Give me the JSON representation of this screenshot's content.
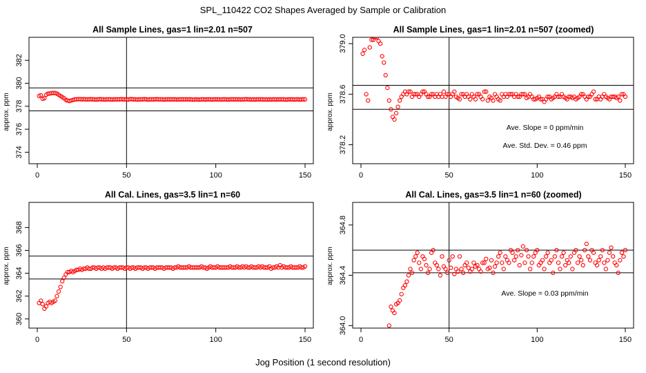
{
  "figure": {
    "title": "SPL_110422  CO2 Shapes Averaged by Sample or Calibration",
    "xlabel": "Jog Position (1 second resolution)"
  },
  "colors": {
    "points": "#ff0000",
    "axes": "#000000",
    "background": "#ffffff"
  },
  "chart_data": [
    {
      "type": "scatter",
      "title": "All Sample Lines, gas=1 lin=2.01 n=507",
      "ylabel": "approx. ppm",
      "xlim": [
        0,
        150
      ],
      "ylim": [
        373,
        384
      ],
      "xticks": [
        0,
        50,
        100,
        150
      ],
      "yticks": [
        374,
        376,
        378,
        380,
        382
      ],
      "ytick_labels": [
        "374",
        "376",
        "378",
        "380",
        "382"
      ],
      "hlines": [
        377.6,
        379.6
      ],
      "vline": 50,
      "annotations": [],
      "x": [
        1,
        2,
        3,
        4,
        5,
        6,
        7,
        8,
        9,
        10,
        11,
        12,
        13,
        14,
        15,
        16,
        17,
        18,
        19,
        20,
        21,
        22,
        23,
        24,
        25,
        26,
        27,
        28,
        29,
        30,
        31,
        32,
        33,
        34,
        35,
        36,
        37,
        38,
        39,
        40,
        41,
        42,
        43,
        44,
        45,
        46,
        47,
        48,
        49,
        50,
        51,
        52,
        53,
        54,
        55,
        56,
        57,
        58,
        59,
        60,
        61,
        62,
        63,
        64,
        65,
        66,
        67,
        68,
        69,
        70,
        71,
        72,
        73,
        74,
        75,
        76,
        77,
        78,
        79,
        80,
        81,
        82,
        83,
        84,
        85,
        86,
        87,
        88,
        89,
        90,
        91,
        92,
        93,
        94,
        95,
        96,
        97,
        98,
        99,
        100,
        101,
        102,
        103,
        104,
        105,
        106,
        107,
        108,
        109,
        110,
        111,
        112,
        113,
        114,
        115,
        116,
        117,
        118,
        119,
        120,
        121,
        122,
        123,
        124,
        125,
        126,
        127,
        128,
        129,
        130,
        131,
        132,
        133,
        134,
        135,
        136,
        137,
        138,
        139,
        140,
        141,
        142,
        143,
        144,
        145,
        146,
        147,
        148,
        149,
        150
      ],
      "y": [
        378.9,
        378.95,
        378.65,
        378.7,
        379.0,
        379.1,
        379.1,
        379.15,
        379.15,
        379.15,
        379.1,
        379.0,
        378.9,
        378.8,
        378.7,
        378.55,
        378.5,
        378.45,
        378.5,
        378.55,
        378.6,
        378.6,
        378.62,
        378.62,
        378.6,
        378.62,
        378.6,
        378.6,
        378.6,
        378.62,
        378.6,
        378.6,
        378.58,
        378.6,
        378.62,
        378.6,
        378.6,
        378.58,
        378.6,
        378.6,
        378.6,
        378.58,
        378.6,
        378.6,
        378.6,
        378.6,
        378.62,
        378.6,
        378.6,
        378.6,
        378.58,
        378.62,
        378.62,
        378.6,
        378.6,
        378.58,
        378.6,
        378.6,
        378.6,
        378.62,
        378.6,
        378.58,
        378.6,
        378.6,
        378.6,
        378.6,
        378.62,
        378.6,
        378.6,
        378.6,
        378.58,
        378.6,
        378.6,
        378.6,
        378.6,
        378.6,
        378.6,
        378.58,
        378.6,
        378.6,
        378.6,
        378.6,
        378.6,
        378.6,
        378.6,
        378.6,
        378.58,
        378.58,
        378.6,
        378.58,
        378.58,
        378.6,
        378.6,
        378.58,
        378.6,
        378.6,
        378.6,
        378.58,
        378.6,
        378.6,
        378.6,
        378.6,
        378.58,
        378.6,
        378.6,
        378.6,
        378.58,
        378.6,
        378.6,
        378.6,
        378.6,
        378.6,
        378.6,
        378.58,
        378.6,
        378.6,
        378.62,
        378.6,
        378.6,
        378.58,
        378.6,
        378.58,
        378.6,
        378.6,
        378.6,
        378.6,
        378.58,
        378.6,
        378.58,
        378.6,
        378.58,
        378.6,
        378.6,
        378.58,
        378.6,
        378.6,
        378.6,
        378.6,
        378.58,
        378.58,
        378.6,
        378.6,
        378.6,
        378.58,
        378.6,
        378.6,
        378.58,
        378.6,
        378.6,
        378.6
      ]
    },
    {
      "type": "scatter",
      "title": "All Sample Lines, gas=1 lin=2.01 n=507 (zoomed)",
      "ylabel": "approx. ppm",
      "xlim": [
        0,
        150
      ],
      "ylim": [
        378.05,
        379.05
      ],
      "xticks": [
        0,
        50,
        100,
        150
      ],
      "yticks": [
        378.2,
        378.6,
        379.0
      ],
      "ytick_labels": [
        "378.2",
        "378.6",
        "379.0"
      ],
      "hlines": [
        378.67,
        378.48
      ],
      "vline": 50,
      "annotations": [
        "Ave. Slope =  0  ppm/min",
        "Ave. Std. Dev. =  0.46  ppm"
      ],
      "x": [
        1,
        2,
        3,
        4,
        5,
        6,
        7,
        8,
        9,
        10,
        11,
        12,
        13,
        14,
        15,
        16,
        17,
        18,
        19,
        20,
        21,
        22,
        23,
        24,
        25,
        26,
        27,
        28,
        29,
        30,
        31,
        32,
        33,
        34,
        35,
        36,
        37,
        38,
        39,
        40,
        41,
        42,
        43,
        44,
        45,
        46,
        47,
        48,
        49,
        50,
        51,
        52,
        53,
        54,
        55,
        56,
        57,
        58,
        59,
        60,
        61,
        62,
        63,
        64,
        65,
        66,
        67,
        68,
        69,
        70,
        71,
        72,
        73,
        74,
        75,
        76,
        77,
        78,
        79,
        80,
        81,
        82,
        83,
        84,
        85,
        86,
        87,
        88,
        89,
        90,
        91,
        92,
        93,
        94,
        95,
        96,
        97,
        98,
        99,
        100,
        101,
        102,
        103,
        104,
        105,
        106,
        107,
        108,
        109,
        110,
        111,
        112,
        113,
        114,
        115,
        116,
        117,
        118,
        119,
        120,
        121,
        122,
        123,
        124,
        125,
        126,
        127,
        128,
        129,
        130,
        131,
        132,
        133,
        134,
        135,
        136,
        137,
        138,
        139,
        140,
        141,
        142,
        143,
        144,
        145,
        146,
        147,
        148,
        149,
        150
      ],
      "y": [
        378.92,
        378.95,
        378.6,
        378.55,
        378.97,
        379.03,
        379.03,
        379.05,
        379.05,
        379.02,
        379.0,
        378.9,
        378.85,
        378.75,
        378.65,
        378.55,
        378.48,
        378.42,
        378.4,
        378.45,
        378.5,
        378.55,
        378.58,
        378.6,
        378.62,
        378.6,
        378.62,
        378.62,
        378.58,
        378.6,
        378.6,
        378.6,
        378.58,
        378.6,
        378.62,
        378.62,
        378.6,
        378.58,
        378.58,
        378.6,
        378.6,
        378.58,
        378.6,
        378.58,
        378.6,
        378.58,
        378.62,
        378.58,
        378.6,
        378.6,
        378.58,
        378.6,
        378.62,
        378.58,
        378.57,
        378.56,
        378.6,
        378.6,
        378.58,
        378.6,
        378.58,
        378.56,
        378.6,
        378.58,
        378.56,
        378.6,
        378.6,
        378.58,
        378.56,
        378.62,
        378.62,
        378.55,
        378.58,
        378.57,
        378.55,
        378.6,
        378.58,
        378.56,
        378.55,
        378.6,
        378.58,
        378.6,
        378.58,
        378.6,
        378.6,
        378.6,
        378.58,
        378.6,
        378.58,
        378.58,
        378.6,
        378.6,
        378.6,
        378.57,
        378.58,
        378.6,
        378.58,
        378.56,
        378.56,
        378.57,
        378.58,
        378.56,
        378.56,
        378.54,
        378.56,
        378.58,
        378.58,
        378.56,
        378.57,
        378.58,
        378.6,
        378.58,
        378.58,
        378.6,
        378.58,
        378.57,
        378.56,
        378.58,
        378.58,
        378.57,
        378.58,
        378.56,
        378.57,
        378.58,
        378.6,
        378.6,
        378.58,
        378.56,
        378.58,
        378.58,
        378.6,
        378.62,
        378.56,
        378.56,
        378.58,
        378.56,
        378.58,
        378.6,
        378.58,
        378.57,
        378.56,
        378.58,
        378.58,
        378.58,
        378.57,
        378.58,
        378.55,
        378.6,
        378.6,
        378.58
      ]
    },
    {
      "type": "scatter",
      "title": "All Cal. Lines, gas=3.5 lin=1 n=60",
      "ylabel": "approx. ppm",
      "xlim": [
        0,
        150
      ],
      "ylim": [
        359.2,
        370.2
      ],
      "xticks": [
        0,
        50,
        100,
        150
      ],
      "yticks": [
        360,
        362,
        364,
        366,
        368
      ],
      "ytick_labels": [
        "360",
        "362",
        "364",
        "366",
        "368"
      ],
      "hlines": [
        365.5,
        363.5
      ],
      "vline": 50,
      "annotations": [],
      "x": [
        1,
        2,
        3,
        4,
        5,
        6,
        7,
        8,
        9,
        10,
        11,
        12,
        13,
        14,
        15,
        16,
        17,
        18,
        19,
        20,
        21,
        22,
        23,
        24,
        25,
        26,
        27,
        28,
        29,
        30,
        31,
        32,
        33,
        34,
        35,
        36,
        37,
        38,
        39,
        40,
        41,
        42,
        43,
        44,
        45,
        46,
        47,
        48,
        49,
        50,
        51,
        52,
        53,
        54,
        55,
        56,
        57,
        58,
        59,
        60,
        61,
        62,
        63,
        64,
        65,
        66,
        67,
        68,
        69,
        70,
        71,
        72,
        73,
        74,
        75,
        76,
        77,
        78,
        79,
        80,
        81,
        82,
        83,
        84,
        85,
        86,
        87,
        88,
        89,
        90,
        91,
        92,
        93,
        94,
        95,
        96,
        97,
        98,
        99,
        100,
        101,
        102,
        103,
        104,
        105,
        106,
        107,
        108,
        109,
        110,
        111,
        112,
        113,
        114,
        115,
        116,
        117,
        118,
        119,
        120,
        121,
        122,
        123,
        124,
        125,
        126,
        127,
        128,
        129,
        130,
        131,
        132,
        133,
        134,
        135,
        136,
        137,
        138,
        139,
        140,
        141,
        142,
        143,
        144,
        145,
        146,
        147,
        148,
        149,
        150
      ],
      "y": [
        361.4,
        361.6,
        361.3,
        360.9,
        361.1,
        361.4,
        361.5,
        361.4,
        361.5,
        361.6,
        362.0,
        362.4,
        362.8,
        363.3,
        363.6,
        363.9,
        364.1,
        364.1,
        364.2,
        364.1,
        364.2,
        364.3,
        364.3,
        364.4,
        364.3,
        364.4,
        364.4,
        364.5,
        364.4,
        364.4,
        364.5,
        364.5,
        364.4,
        364.5,
        364.5,
        364.4,
        364.5,
        364.4,
        364.5,
        364.5,
        364.5,
        364.4,
        364.5,
        364.5,
        364.4,
        364.5,
        364.5,
        364.5,
        364.4,
        364.5,
        364.5,
        364.4,
        364.5,
        364.5,
        364.4,
        364.5,
        364.5,
        364.5,
        364.4,
        364.5,
        364.5,
        364.4,
        364.5,
        364.5,
        364.5,
        364.4,
        364.5,
        364.5,
        364.5,
        364.5,
        364.4,
        364.5,
        364.5,
        364.5,
        364.5,
        364.4,
        364.5,
        364.5,
        364.6,
        364.5,
        364.5,
        364.5,
        364.5,
        364.5,
        364.6,
        364.5,
        364.5,
        364.5,
        364.5,
        364.5,
        364.5,
        364.6,
        364.5,
        364.5,
        364.4,
        364.5,
        364.6,
        364.5,
        364.5,
        364.5,
        364.6,
        364.5,
        364.5,
        364.5,
        364.5,
        364.5,
        364.5,
        364.6,
        364.5,
        364.5,
        364.5,
        364.6,
        364.5,
        364.5,
        364.6,
        364.5,
        364.6,
        364.5,
        364.5,
        364.6,
        364.5,
        364.5,
        364.5,
        364.6,
        364.5,
        364.6,
        364.5,
        364.5,
        364.5,
        364.6,
        364.4,
        364.5,
        364.5,
        364.6,
        364.5,
        364.7,
        364.5,
        364.6,
        364.5,
        364.5,
        364.5,
        364.6,
        364.5,
        364.5,
        364.5,
        364.5,
        364.6,
        364.5,
        364.5,
        364.6
      ]
    },
    {
      "type": "scatter",
      "title": "All Cal. Lines, gas=3.5 lin=1 n=60 (zoomed)",
      "ylabel": "approx. ppm",
      "xlim": [
        0,
        150
      ],
      "ylim": [
        363.98,
        364.98
      ],
      "xticks": [
        0,
        50,
        100,
        150
      ],
      "yticks": [
        364.0,
        364.4,
        364.8
      ],
      "ytick_labels": [
        "364.0",
        "364.4",
        "364.8"
      ],
      "hlines": [
        364.6,
        364.42
      ],
      "vline": 50,
      "annotations": [
        "Ave. Slope =  0.03  ppm/min"
      ],
      "x": [
        16,
        17,
        18,
        19,
        20,
        21,
        22,
        23,
        24,
        25,
        26,
        27,
        28,
        29,
        30,
        31,
        32,
        33,
        34,
        35,
        36,
        37,
        38,
        39,
        40,
        41,
        42,
        43,
        44,
        45,
        46,
        47,
        48,
        49,
        50,
        51,
        52,
        53,
        54,
        55,
        56,
        57,
        58,
        59,
        60,
        61,
        62,
        63,
        64,
        65,
        66,
        67,
        68,
        69,
        70,
        71,
        72,
        73,
        74,
        75,
        76,
        77,
        78,
        79,
        80,
        81,
        82,
        83,
        84,
        85,
        86,
        87,
        88,
        89,
        90,
        91,
        92,
        93,
        94,
        95,
        96,
        97,
        98,
        99,
        100,
        101,
        102,
        103,
        104,
        105,
        106,
        107,
        108,
        109,
        110,
        111,
        112,
        113,
        114,
        115,
        116,
        117,
        118,
        119,
        120,
        121,
        122,
        123,
        124,
        125,
        126,
        127,
        128,
        129,
        130,
        131,
        132,
        133,
        134,
        135,
        136,
        137,
        138,
        139,
        140,
        141,
        142,
        143,
        144,
        145,
        146,
        147,
        148,
        149,
        150
      ],
      "y": [
        364.0,
        364.15,
        364.12,
        364.1,
        364.17,
        364.18,
        364.2,
        364.25,
        364.3,
        364.32,
        364.35,
        364.4,
        364.45,
        364.42,
        364.52,
        364.55,
        364.58,
        364.5,
        364.45,
        364.55,
        364.53,
        364.48,
        364.42,
        364.45,
        364.58,
        364.6,
        364.5,
        364.48,
        364.45,
        364.4,
        364.55,
        364.47,
        364.45,
        364.42,
        364.52,
        364.46,
        364.55,
        364.41,
        364.45,
        364.43,
        364.55,
        364.45,
        364.42,
        364.48,
        364.5,
        364.46,
        364.43,
        364.45,
        364.5,
        364.47,
        364.48,
        364.45,
        364.43,
        364.5,
        364.5,
        364.53,
        364.45,
        364.46,
        364.52,
        364.42,
        364.47,
        364.5,
        364.55,
        364.58,
        364.5,
        364.45,
        364.55,
        364.52,
        364.5,
        364.6,
        364.58,
        364.52,
        364.55,
        364.6,
        364.48,
        364.56,
        364.63,
        364.5,
        364.6,
        364.55,
        364.45,
        364.5,
        364.55,
        364.58,
        364.6,
        364.48,
        364.5,
        364.52,
        364.45,
        364.55,
        364.58,
        364.5,
        364.52,
        364.42,
        364.55,
        364.6,
        364.5,
        364.45,
        364.55,
        364.58,
        364.48,
        364.52,
        364.5,
        364.55,
        364.45,
        364.58,
        364.6,
        364.5,
        364.55,
        364.52,
        364.48,
        364.6,
        364.65,
        364.55,
        364.52,
        364.6,
        364.58,
        364.5,
        364.48,
        364.52,
        364.55,
        364.6,
        364.5,
        364.45,
        364.52,
        364.58,
        364.62,
        364.55,
        364.5,
        364.48,
        364.42,
        364.52,
        364.58,
        364.55,
        364.6
      ]
    }
  ]
}
